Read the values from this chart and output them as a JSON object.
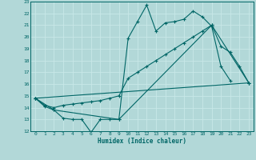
{
  "xlabel": "Humidex (Indice chaleur)",
  "bg_color": "#b2d8d8",
  "grid_color": "#d4eeee",
  "line_color": "#006666",
  "xlim": [
    -0.5,
    23.5
  ],
  "ylim": [
    12,
    23
  ],
  "xticks": [
    0,
    1,
    2,
    3,
    4,
    5,
    6,
    7,
    8,
    9,
    10,
    11,
    12,
    13,
    14,
    15,
    16,
    17,
    18,
    19,
    20,
    21,
    22,
    23
  ],
  "yticks": [
    12,
    13,
    14,
    15,
    16,
    17,
    18,
    19,
    20,
    21,
    22,
    23
  ],
  "line1_x": [
    0,
    1,
    2,
    3,
    4,
    5,
    6,
    7,
    8,
    9,
    10,
    11,
    12,
    13,
    14,
    15,
    16,
    17,
    18,
    19,
    20,
    21
  ],
  "line1_y": [
    14.8,
    14.1,
    13.8,
    13.1,
    13.0,
    13.0,
    11.9,
    13.0,
    13.0,
    13.0,
    19.9,
    21.3,
    22.7,
    20.5,
    21.2,
    21.3,
    21.5,
    22.2,
    21.7,
    20.9,
    17.5,
    16.3
  ],
  "line2_x": [
    0,
    1,
    2,
    3,
    4,
    5,
    6,
    7,
    8,
    9,
    10,
    11,
    12,
    13,
    14,
    15,
    16,
    17,
    18,
    19,
    20,
    21,
    22,
    23
  ],
  "line2_y": [
    14.8,
    14.2,
    14.0,
    14.2,
    14.3,
    14.4,
    14.5,
    14.6,
    14.8,
    15.0,
    16.5,
    17.0,
    17.5,
    18.0,
    18.5,
    19.0,
    19.5,
    20.0,
    20.5,
    21.0,
    19.2,
    18.7,
    17.5,
    16.1
  ],
  "line3_x": [
    0,
    2,
    9,
    19,
    23
  ],
  "line3_y": [
    14.8,
    13.8,
    13.0,
    21.0,
    16.1
  ],
  "line4_x": [
    0,
    23
  ],
  "line4_y": [
    14.8,
    16.1
  ]
}
